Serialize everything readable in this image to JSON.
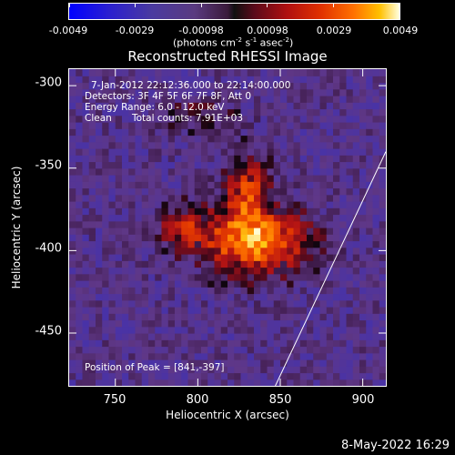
{
  "colorbar": {
    "tick_labels": [
      "-0.0049",
      "-0.0029",
      "-0.00098",
      "0.00098",
      "0.0029",
      "0.0049"
    ],
    "unit_label": "(photons cm",
    "unit_exp1": "-2",
    "unit_mid1": " s",
    "unit_exp2": "-1",
    "unit_mid2": " asec",
    "unit_exp3": "-2",
    "unit_end": ")",
    "min": -0.0049,
    "max": 0.0049
  },
  "chart_data": {
    "type": "heatmap",
    "title": "Reconstructed RHESSI Image",
    "xlabel": "Heliocentric X (arcsec)",
    "ylabel": "Heliocentric Y (arcsec)",
    "xlim": [
      722,
      914
    ],
    "ylim": [
      -482,
      -290
    ],
    "xticks": [
      "750",
      "800",
      "850",
      "900"
    ],
    "yticks": [
      "-300",
      "-350",
      "-400",
      "-450"
    ],
    "xtick_values": [
      750,
      800,
      850,
      900
    ],
    "ytick_values": [
      -300,
      -350,
      -400,
      -450
    ],
    "peak_position": [
      841,
      -397
    ],
    "limb_line": {
      "x": [
        847,
        914
      ],
      "y": [
        -482,
        -340
      ]
    },
    "annotations": [
      "7-Jan-2012 22:12:36.000 to 22:14:00.000",
      "Detectors: 3F 4F 5F 6F 7F 8F, Att 0",
      "Energy Range: 6.0 - 12.0 keV",
      "Clean",
      "Total counts: 7.91E+03",
      "Position of Peak = [841,-397]"
    ]
  },
  "footer": {
    "timestamp": "8-May-2022 16:29"
  }
}
